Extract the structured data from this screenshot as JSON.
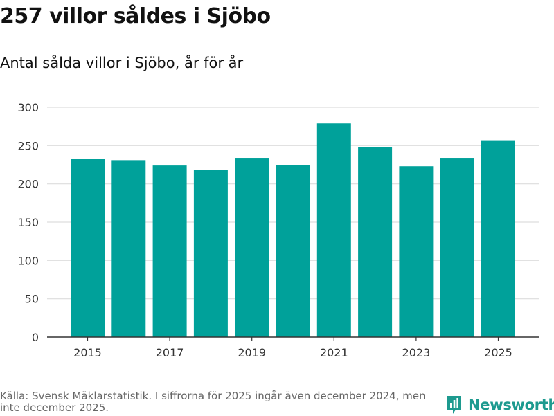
{
  "header": {
    "title": "257 villor såldes i Sjöbo",
    "subtitle": "Antal sålda villor i Sjöbo, år för år"
  },
  "footer": {
    "source": "Källa: Svensk Mäklarstatistik. I siffrorna för 2025 ingår även december 2024, men inte december 2025."
  },
  "brand": {
    "name": "Newsworthy",
    "icon": "newsworthy-logo-icon",
    "color": "#1d9a8f"
  },
  "chart_data": {
    "type": "bar",
    "title": "257 villor såldes i Sjöbo",
    "subtitle": "Antal sålda villor i Sjöbo, år för år",
    "xlabel": "",
    "ylabel": "",
    "categories": [
      "2015",
      "2016",
      "2017",
      "2018",
      "2019",
      "2020",
      "2021",
      "2022",
      "2023",
      "2024",
      "2025"
    ],
    "x_tick_labels": [
      "2015",
      "2017",
      "2019",
      "2021",
      "2023",
      "2025"
    ],
    "y_tick_labels": [
      "0",
      "50",
      "100",
      "150",
      "200",
      "250",
      "300"
    ],
    "values": [
      233,
      231,
      224,
      218,
      234,
      225,
      279,
      248,
      223,
      234,
      257
    ],
    "ylim": [
      0,
      300
    ],
    "grid": true,
    "legend": "none",
    "bar_color": "#00a19a",
    "grid_color": "#dddddd",
    "axis_color": "#333333"
  }
}
